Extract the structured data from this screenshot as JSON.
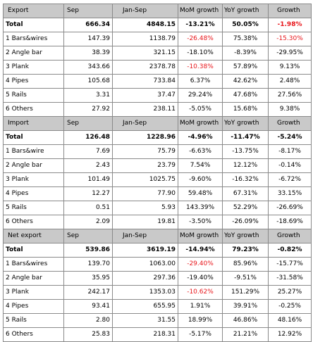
{
  "sections": [
    {
      "header": [
        "Export",
        "Sep",
        "Jan-Sep",
        "MoM growth",
        "YoY growth",
        "Growth"
      ],
      "rows": [
        [
          "Total",
          "666.34",
          "4848.15",
          "-13.21%",
          "50.05%",
          "-1.98%"
        ],
        [
          "1 Bars&wires",
          "147.39",
          "1138.79",
          "-26.48%",
          "75.38%",
          "-15.30%"
        ],
        [
          "2 Angle bar",
          "38.39",
          "321.15",
          "-18.10%",
          "-8.39%",
          "-29.95%"
        ],
        [
          "3  Plank",
          "343.66",
          "2378.78",
          "-10.38%",
          "57.89%",
          "9.13%"
        ],
        [
          "4  Pipes",
          "105.68",
          "733.84",
          "6.37%",
          "42.62%",
          "2.48%"
        ],
        [
          "5  Rails",
          "3.31",
          "37.47",
          "29.24%",
          "47.68%",
          "27.56%"
        ],
        [
          "6 Others",
          "27.92",
          "238.11",
          "-5.05%",
          "15.68%",
          "9.38%"
        ]
      ],
      "red": [
        [
          0,
          5
        ],
        [
          1,
          3
        ],
        [
          1,
          5
        ],
        [
          3,
          3
        ]
      ]
    },
    {
      "header": [
        "Import",
        "Sep",
        "Jan-Sep",
        "MoM growth",
        "YoY growth",
        "Growth"
      ],
      "rows": [
        [
          "Total",
          "126.48",
          "1228.96",
          "-4.96%",
          "-11.47%",
          "-5.24%"
        ],
        [
          "1 Bars&wire",
          "7.69",
          "75.79",
          "-6.63%",
          "-13.75%",
          "-8.17%"
        ],
        [
          "2  Angle bar",
          "2.43",
          "23.79",
          "7.54%",
          "12.12%",
          "-0.14%"
        ],
        [
          "3   Plank",
          "101.49",
          "1025.75",
          "-9.60%",
          "-16.32%",
          "-6.72%"
        ],
        [
          "4 Pipes",
          "12.27",
          "77.90",
          "59.48%",
          "67.31%",
          "33.15%"
        ],
        [
          "5 Rails",
          "0.51",
          "5.93",
          "143.39%",
          "52.29%",
          "-26.69%"
        ],
        [
          "6 Others",
          "2.09",
          "19.81",
          "-3.50%",
          "-26.09%",
          "-18.69%"
        ]
      ],
      "red": []
    },
    {
      "header": [
        "Net export",
        "Sep",
        "Jan-Sep",
        "MoM growth",
        "YoY growth",
        "Growth"
      ],
      "rows": [
        [
          "Total",
          "539.86",
          "3619.19",
          "-14.94%",
          "79.23%",
          "-0.82%"
        ],
        [
          "1 Bars&wires",
          "139.70",
          "1063.00",
          "-29.40%",
          "85.96%",
          "-15.77%"
        ],
        [
          "2 Angle bar",
          "35.95",
          "297.36",
          "-19.40%",
          "-9.51%",
          "-31.58%"
        ],
        [
          "3 Plank",
          "242.17",
          "1353.03",
          "-10.62%",
          "151.29%",
          "25.27%"
        ],
        [
          "4 Pipes",
          "93.41",
          "655.95",
          "1.91%",
          "39.91%",
          "-0.25%"
        ],
        [
          "5 Rails",
          "2.80",
          "31.55",
          "18.99%",
          "46.86%",
          "48.16%"
        ],
        [
          "6  Others",
          "25.83",
          "218.31",
          "-5.17%",
          "21.21%",
          "12.92%"
        ]
      ],
      "red": [
        [
          1,
          3
        ],
        [
          3,
          3
        ]
      ]
    }
  ]
}
